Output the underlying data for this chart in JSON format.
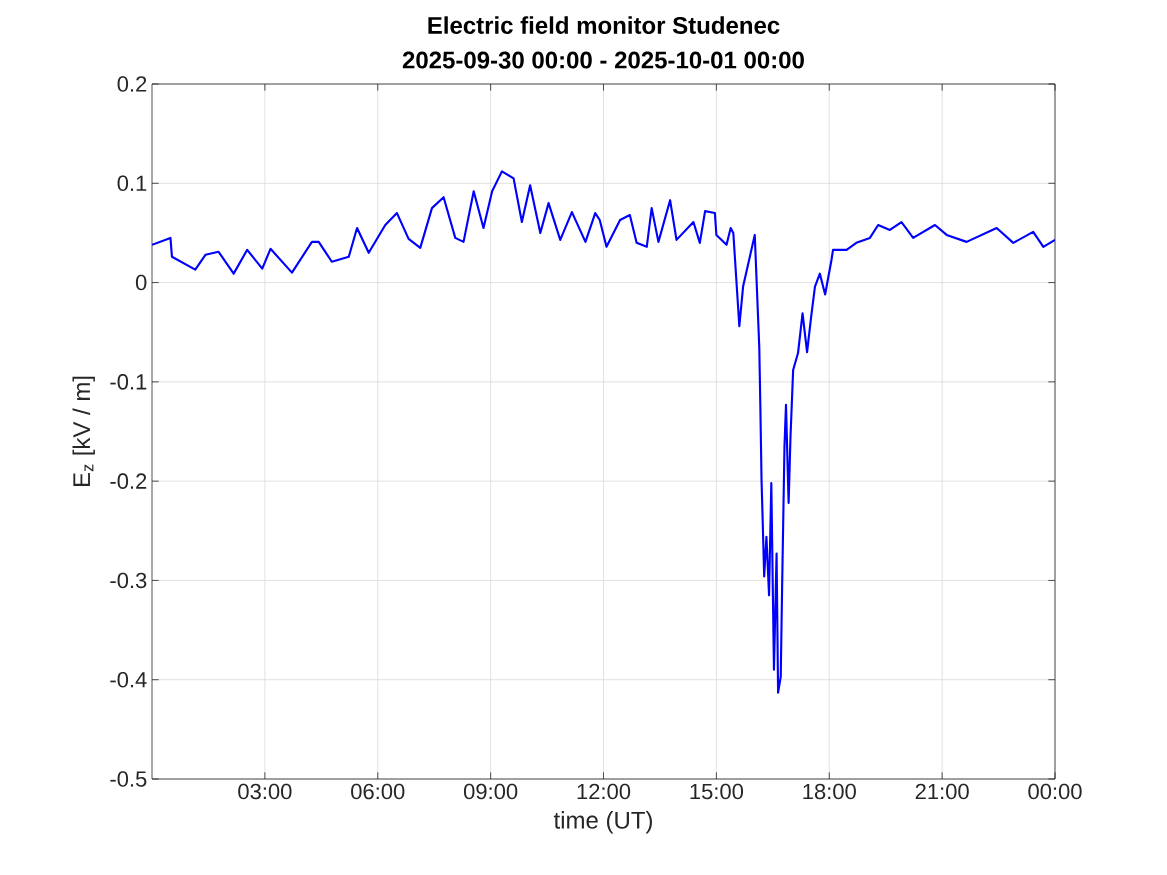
{
  "chart_data": {
    "type": "line",
    "title": "Electric field monitor Studenec",
    "subtitle": "2025-09-30 00:00 - 2025-10-01 00:00",
    "xlabel": "time (UT)",
    "ylabel": "E$_{z}$ [kV / m]",
    "xlim": [
      0,
      24
    ],
    "ylim": [
      -0.5,
      0.2
    ],
    "xticks": [
      {
        "value": 3,
        "label": "03:00"
      },
      {
        "value": 6,
        "label": "06:00"
      },
      {
        "value": 9,
        "label": "09:00"
      },
      {
        "value": 12,
        "label": "12:00"
      },
      {
        "value": 15,
        "label": "15:00"
      },
      {
        "value": 18,
        "label": "18:00"
      },
      {
        "value": 21,
        "label": "21:00"
      },
      {
        "value": 24,
        "label": "00:00"
      }
    ],
    "yticks": [
      -0.5,
      -0.4,
      -0.3,
      -0.2,
      -0.1,
      0,
      0.1,
      0.2
    ],
    "grid": true,
    "marker": "none",
    "line_style": "solid",
    "series": [
      {
        "color": "#0000ff",
        "x": [
          0,
          0.49,
          0.53,
          1.15,
          1.42,
          1.77,
          2.17,
          2.53,
          2.93,
          3.15,
          3.72,
          4.25,
          4.43,
          4.78,
          5.23,
          5.45,
          5.76,
          6.2,
          6.51,
          6.82,
          7.13,
          7.44,
          7.75,
          8.06,
          8.28,
          8.55,
          8.81,
          9.04,
          9.3,
          9.61,
          9.83,
          10.05,
          10.32,
          10.54,
          10.85,
          11.16,
          11.52,
          11.78,
          11.9,
          12.08,
          12.44,
          12.7,
          12.88,
          13.15,
          13.28,
          13.46,
          13.77,
          13.94,
          14.39,
          14.56,
          14.7,
          14.96,
          15.0,
          15.27,
          15.38,
          15.45,
          15.61,
          15.71,
          16.02,
          16.14,
          16.17,
          16.2,
          16.23,
          16.27,
          16.33,
          16.4,
          16.46,
          16.53,
          16.6,
          16.64,
          16.71,
          16.75,
          16.81,
          16.85,
          16.92,
          16.97,
          17.04,
          17.17,
          17.29,
          17.41,
          17.52,
          17.62,
          17.75,
          17.89,
          18.06,
          18.1,
          18.46,
          18.72,
          19.08,
          19.3,
          19.61,
          19.92,
          20.23,
          20.81,
          21.12,
          21.65,
          22.45,
          22.89,
          23.42,
          23.69,
          24
        ],
        "values": [
          0.038,
          0.045,
          0.026,
          0.013,
          0.028,
          0.031,
          0.009,
          0.033,
          0.014,
          0.034,
          0.01,
          0.041,
          0.041,
          0.021,
          0.026,
          0.055,
          0.03,
          0.058,
          0.07,
          0.044,
          0.035,
          0.075,
          0.086,
          0.045,
          0.041,
          0.092,
          0.055,
          0.092,
          0.112,
          0.105,
          0.061,
          0.098,
          0.05,
          0.08,
          0.043,
          0.071,
          0.041,
          0.07,
          0.063,
          0.036,
          0.063,
          0.068,
          0.04,
          0.036,
          0.075,
          0.041,
          0.083,
          0.043,
          0.061,
          0.04,
          0.072,
          0.07,
          0.048,
          0.038,
          0.055,
          0.05,
          -0.044,
          -0.004,
          0.048,
          -0.065,
          -0.128,
          -0.199,
          -0.239,
          -0.296,
          -0.256,
          -0.315,
          -0.202,
          -0.39,
          -0.273,
          -0.413,
          -0.397,
          -0.3,
          -0.165,
          -0.123,
          -0.222,
          -0.155,
          -0.088,
          -0.071,
          -0.031,
          -0.07,
          -0.034,
          -0.004,
          0.009,
          -0.012,
          0.023,
          0.033,
          0.033,
          0.04,
          0.045,
          0.058,
          0.053,
          0.061,
          0.045,
          0.058,
          0.048,
          0.041,
          0.055,
          0.04,
          0.051,
          0.036,
          0.043
        ]
      }
    ]
  }
}
